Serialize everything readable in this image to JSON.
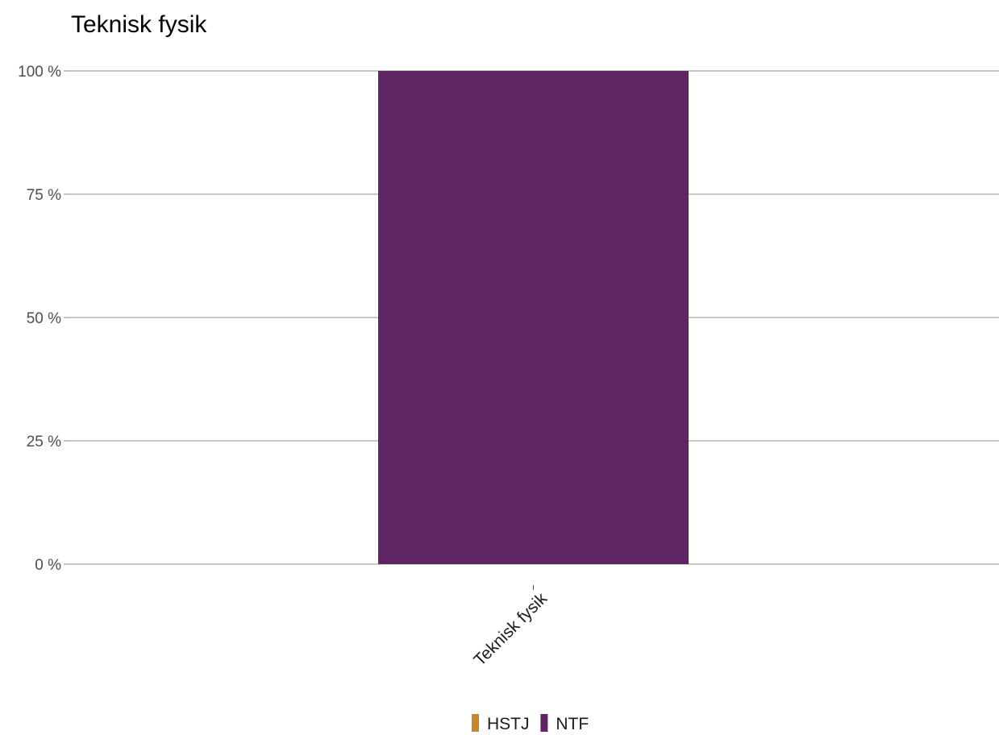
{
  "chart_data": {
    "type": "bar",
    "stacked": true,
    "title": "Teknisk fysik",
    "xlabel": "",
    "ylabel": "",
    "categories": [
      "Teknisk fysik"
    ],
    "series": [
      {
        "name": "HSTJ",
        "color": "#c8862a",
        "values": [
          0
        ]
      },
      {
        "name": "NTF",
        "color": "#5e2563",
        "values": [
          100
        ]
      }
    ],
    "ylim": [
      0,
      100
    ],
    "yticks": [
      0,
      25,
      50,
      75,
      100
    ],
    "ytick_labels": [
      "0 %",
      "25 %",
      "50 %",
      "75 %",
      "100 %"
    ],
    "grid": "horizontal",
    "legend_position": "bottom"
  }
}
